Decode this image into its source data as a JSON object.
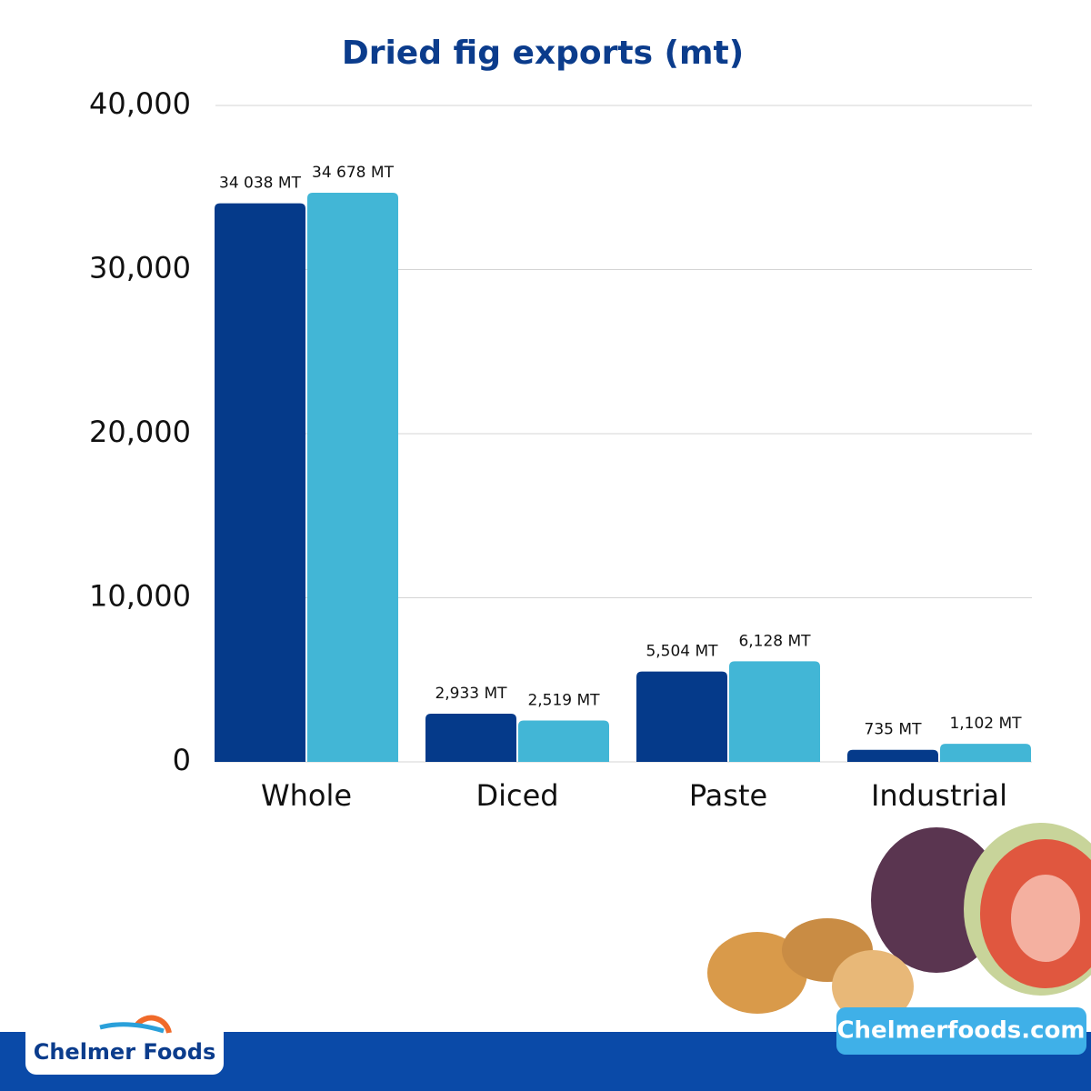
{
  "chart_data": {
    "type": "bar",
    "title": "Dried fig exports (mt)",
    "categories": [
      "Whole",
      "Diced",
      "Paste",
      "Industrial"
    ],
    "series": [
      {
        "color": "#053a8a",
        "values": [
          34038,
          2933,
          5504,
          735
        ],
        "value_labels": [
          "34 038 MT",
          "2,933 MT",
          "5,504 MT",
          "735 MT"
        ]
      },
      {
        "color": "#42b6d6",
        "values": [
          34678,
          2519,
          6128,
          1102
        ],
        "value_labels": [
          "34 678 MT",
          "2,519 MT",
          "6,128 MT",
          "1,102 MT"
        ]
      }
    ],
    "ylim": [
      0,
      40000
    ],
    "yticks": [
      0,
      {
        "value": 10000,
        "label": "10,000"
      },
      {
        "value": 20000,
        "label": "20,000"
      },
      {
        "value": 30000,
        "label": "30,000"
      },
      {
        "value": 40000,
        "label": "40,000"
      }
    ],
    "grid": true
  },
  "footer": {
    "logo": "Chelmer Foods",
    "website": "Chelmerfoods.com"
  }
}
